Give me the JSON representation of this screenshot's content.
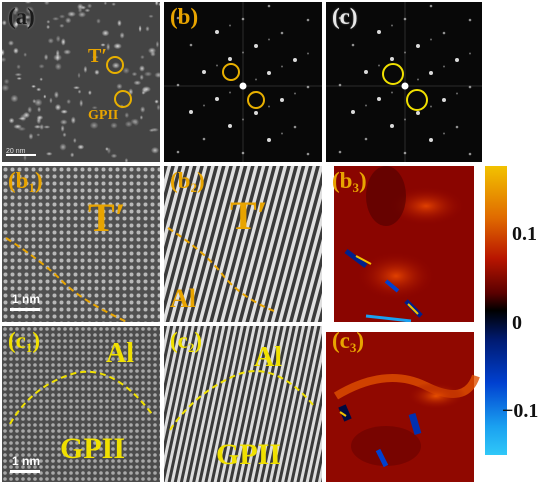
{
  "panels": {
    "a": {
      "label": "(a)",
      "colors": {
        "label": "#1a1a1a"
      },
      "annot_t": "T′",
      "annot_gp": "GPII",
      "scalebar": "20 nm"
    },
    "b": {
      "label": "(b)",
      "colors": {
        "label": "#e8a400"
      }
    },
    "c": {
      "label": "(c)",
      "colors": {
        "label": "#1a1a1a"
      }
    },
    "b1": {
      "label": "(b",
      "sub": "1",
      "close": ")",
      "phase_top": "T′",
      "scalebar": "1 nm"
    },
    "b2": {
      "label": "(b",
      "sub": "2",
      "close": ")",
      "phase_top": "T′",
      "phase_bottom": "Al"
    },
    "b3": {
      "label": "(b",
      "sub": "3",
      "close": ")"
    },
    "c1": {
      "label": "(c",
      "sub": "1",
      "close": ")",
      "phase_top": "Al",
      "phase_bottom": "GPII",
      "scalebar": "1 nm"
    },
    "c2": {
      "label": "(c",
      "sub": "2",
      "close": ")",
      "phase_top": "Al",
      "phase_bottom": "GPII"
    },
    "c3": {
      "label": "(c",
      "sub": "3",
      "close": ")"
    }
  },
  "colorbar": {
    "ticks": [
      "0.1",
      "0",
      "−0.1"
    ],
    "colors": {
      "high": "#f2c200",
      "mid": "#000000",
      "low": "#30c8f8"
    }
  },
  "colors": {
    "annotation_orange": "#e8a400",
    "annotation_yellow": "#f0e000"
  }
}
